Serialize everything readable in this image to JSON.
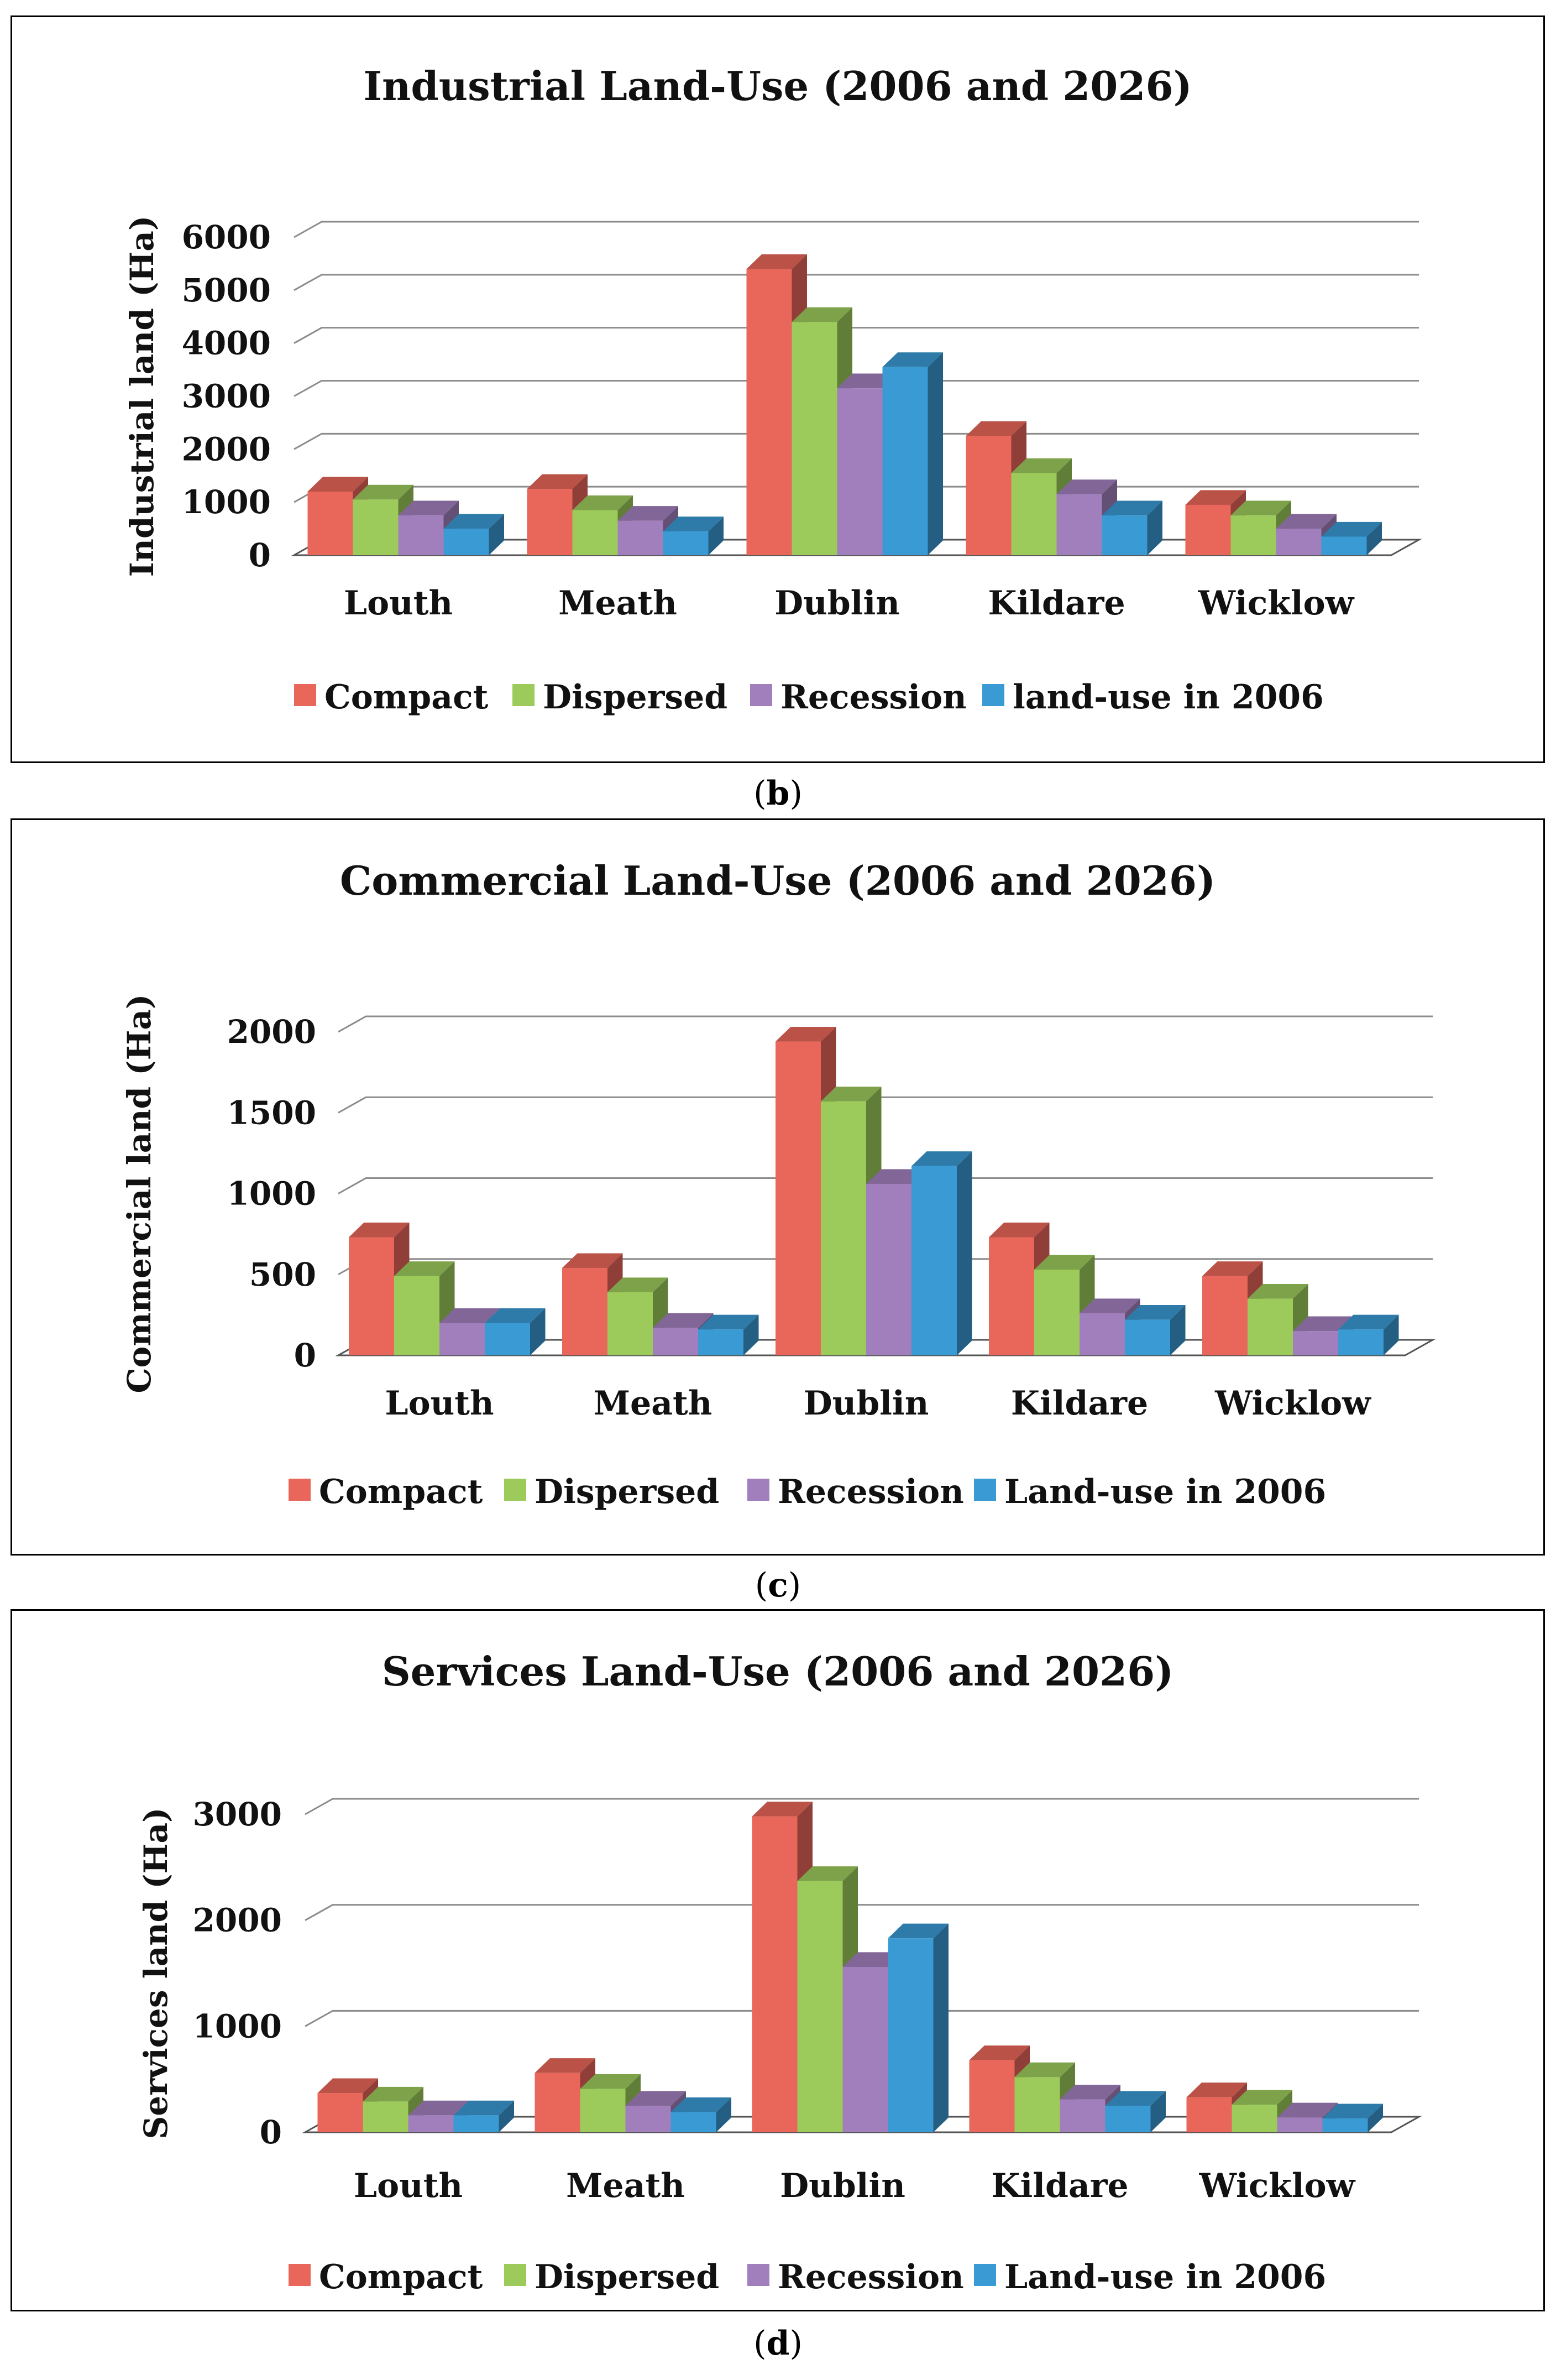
{
  "figure": {
    "captions": [
      {
        "open": "(",
        "letter": "b",
        "close": ")"
      },
      {
        "open": "(",
        "letter": "c",
        "close": ")"
      },
      {
        "open": "(",
        "letter": "d",
        "close": ")"
      }
    ]
  },
  "colors": {
    "compact": "#e8665a",
    "dispersed": "#9ccb5c",
    "recession": "#a17fbd",
    "landuse2006": "#3a9ad3",
    "grid": "#8c8c8c"
  },
  "chart_data": [
    {
      "type": "bar",
      "title": "Industrial Land-Use (2006 and 2026)",
      "ylabel": "Industrial land (Ha)",
      "xlabel": "",
      "ylim": [
        0,
        6000
      ],
      "yticks": [
        "0",
        "1000",
        "2000",
        "3000",
        "4000",
        "5000",
        "6000"
      ],
      "categories": [
        "Louth",
        "Meath",
        "Dublin",
        "Kildare",
        "Wicklow"
      ],
      "legend_position": "bottom",
      "series": [
        {
          "name": "Compact",
          "values": [
            1200,
            1250,
            5400,
            2250,
            950
          ]
        },
        {
          "name": "Dispersed",
          "values": [
            1050,
            850,
            4400,
            1550,
            750
          ]
        },
        {
          "name": "Recession",
          "values": [
            750,
            650,
            3150,
            1150,
            500
          ]
        },
        {
          "name": "land-use in 2006",
          "values": [
            500,
            450,
            3550,
            750,
            350
          ]
        }
      ]
    },
    {
      "type": "bar",
      "title": "Commercial Land-Use (2006 and 2026)",
      "ylabel": "Commercial land (Ha)",
      "xlabel": "",
      "ylim": [
        0,
        2000
      ],
      "yticks": [
        "0",
        "500",
        "1000",
        "1500",
        "2000"
      ],
      "categories": [
        "Louth",
        "Meath",
        "Dublin",
        "Kildare",
        "Wicklow"
      ],
      "legend_position": "bottom",
      "series": [
        {
          "name": "Compact",
          "values": [
            730,
            540,
            1940,
            730,
            490
          ]
        },
        {
          "name": "Dispersed",
          "values": [
            490,
            390,
            1570,
            530,
            350
          ]
        },
        {
          "name": "Recession",
          "values": [
            200,
            170,
            1060,
            260,
            150
          ]
        },
        {
          "name": "Land-use in 2006",
          "values": [
            200,
            160,
            1170,
            220,
            160
          ]
        }
      ]
    },
    {
      "type": "bar",
      "title": "Services Land-Use (2006 and 2026)",
      "ylabel": "Services land (Ha)",
      "xlabel": "",
      "ylim": [
        0,
        3000
      ],
      "yticks": [
        "0",
        "1000",
        "2000",
        "3000"
      ],
      "categories": [
        "Louth",
        "Meath",
        "Dublin",
        "Kildare",
        "Wicklow"
      ],
      "legend_position": "bottom",
      "series": [
        {
          "name": "Compact",
          "values": [
            370,
            560,
            2980,
            680,
            330
          ]
        },
        {
          "name": "Dispersed",
          "values": [
            290,
            410,
            2370,
            520,
            260
          ]
        },
        {
          "name": "Recession",
          "values": [
            160,
            250,
            1560,
            310,
            140
          ]
        },
        {
          "name": "Land-use in 2006",
          "values": [
            160,
            190,
            1830,
            250,
            130
          ]
        }
      ]
    }
  ]
}
